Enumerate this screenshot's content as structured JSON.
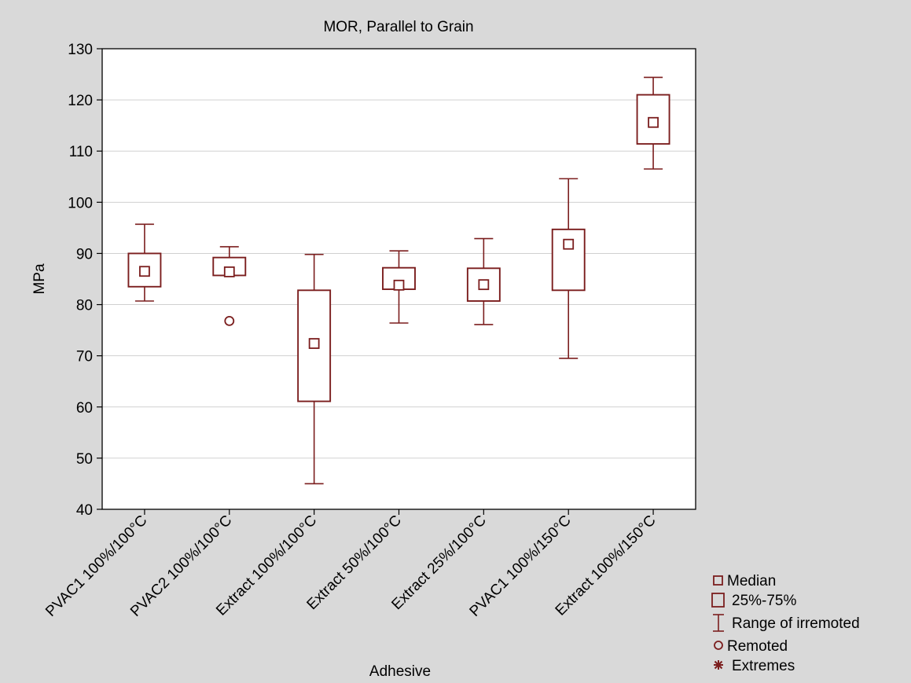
{
  "chart_data": {
    "type": "box",
    "title": "MOR, Parallel to Grain",
    "xlabel": "Adhesive",
    "ylabel": "MPa",
    "ylim": [
      40,
      130
    ],
    "yticks": [
      40,
      50,
      60,
      70,
      80,
      90,
      100,
      110,
      120,
      130
    ],
    "grid": true,
    "categories": [
      "PVAC1 100%/100°C",
      "PVAC2 100%/100°C",
      "Extract 100%/100°C",
      "Extract 50%/100°C",
      "Extract 25%/100°C",
      "PVAC1 100%/150°C",
      "Extract 100%/150°C"
    ],
    "boxes": [
      {
        "median": 86.5,
        "q1": 83.5,
        "q3": 90.0,
        "whisker_low": 80.7,
        "whisker_high": 95.7,
        "outliers": []
      },
      {
        "median": 86.4,
        "q1": 85.7,
        "q3": 89.2,
        "whisker_low": 85.7,
        "whisker_high": 91.3,
        "outliers": [
          76.8
        ]
      },
      {
        "median": 72.4,
        "q1": 61.1,
        "q3": 82.8,
        "whisker_low": 45.0,
        "whisker_high": 89.8,
        "outliers": []
      },
      {
        "median": 83.8,
        "q1": 83.0,
        "q3": 87.2,
        "whisker_low": 76.4,
        "whisker_high": 90.5,
        "outliers": []
      },
      {
        "median": 83.9,
        "q1": 80.7,
        "q3": 87.1,
        "whisker_low": 76.1,
        "whisker_high": 92.9,
        "outliers": []
      },
      {
        "median": 91.8,
        "q1": 82.8,
        "q3": 94.7,
        "whisker_low": 69.5,
        "whisker_high": 104.6,
        "outliers": []
      },
      {
        "median": 115.6,
        "q1": 111.4,
        "q3": 121.0,
        "whisker_low": 106.5,
        "whisker_high": 124.4,
        "outliers": []
      }
    ],
    "legend": {
      "placement": "bottom-right",
      "items": [
        "Median",
        "25%-75%",
        "Range of irremoted",
        "Remoted",
        "Extremes"
      ]
    },
    "colors": {
      "series": "#7b1e1e",
      "background": "#d9d9d9",
      "plot_area": "#ffffff",
      "grid": "#d0d0d0"
    }
  }
}
